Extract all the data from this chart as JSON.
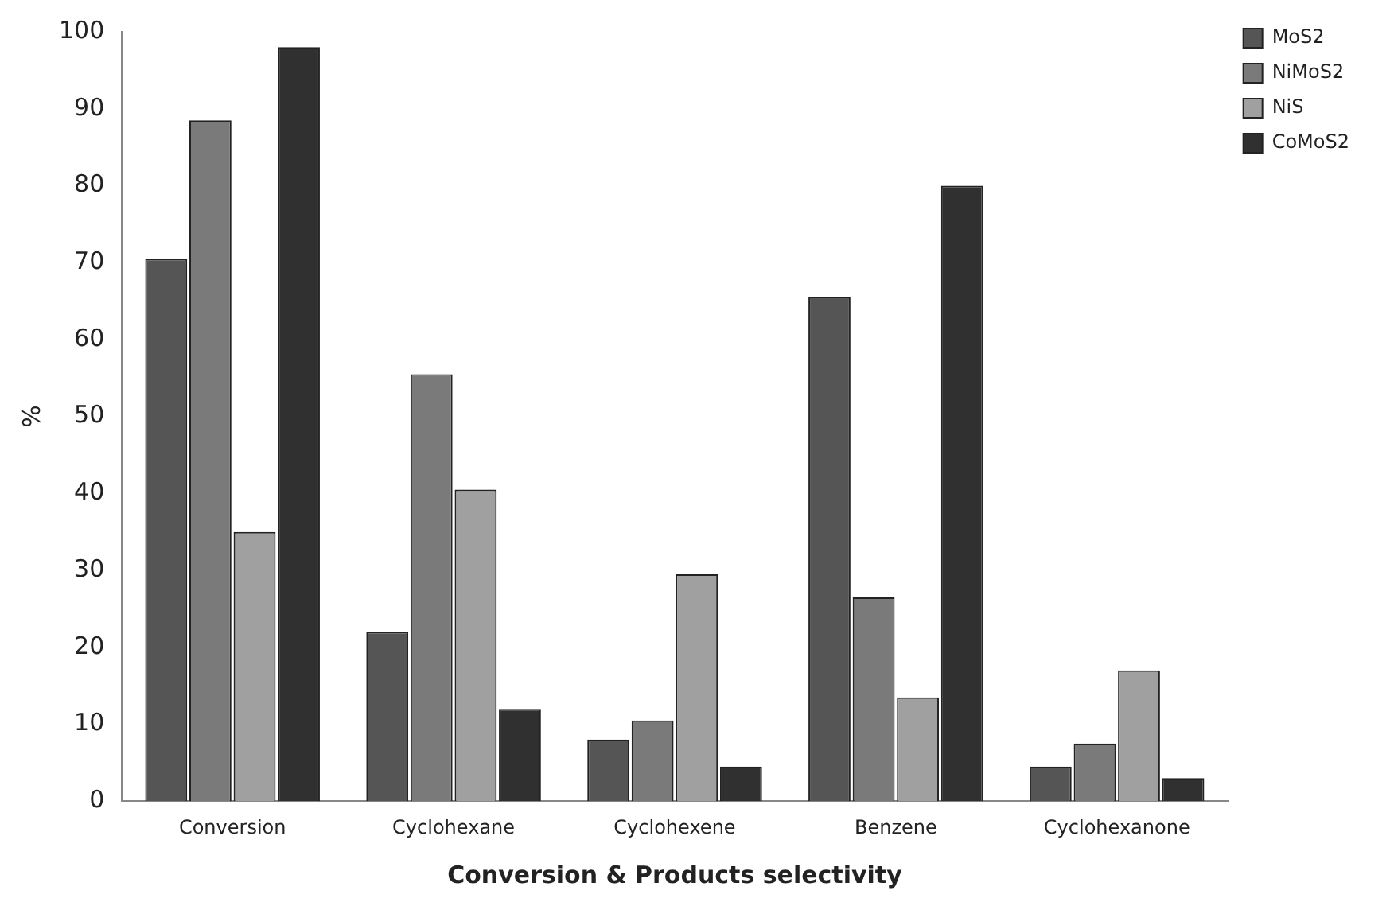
{
  "chart_data": {
    "type": "bar",
    "xlabel": "Conversion & Products selectivity",
    "ylabel": "%",
    "categories": [
      "Conversion",
      "Cyclohexane",
      "Cyclohexene",
      "Benzene",
      "Cyclohexanone"
    ],
    "series": [
      {
        "name": "MoS2",
        "color": "#555555",
        "values": [
          70.5,
          22,
          8,
          65.5,
          4.5
        ]
      },
      {
        "name": "NiMoS2",
        "color": "#7a7a7a",
        "values": [
          88.5,
          55.5,
          10.5,
          26.5,
          7.5
        ]
      },
      {
        "name": "NiS",
        "color": "#a0a0a0",
        "values": [
          35,
          40.5,
          29.5,
          13.5,
          17
        ]
      },
      {
        "name": "CoMoS2",
        "color": "#303030",
        "values": [
          98,
          12,
          4.5,
          80,
          3
        ]
      }
    ],
    "ylim": [
      0,
      100
    ],
    "yticks": [
      0,
      10,
      20,
      30,
      40,
      50,
      60,
      70,
      80,
      90,
      100
    ],
    "grid": false,
    "legend": "top right"
  }
}
